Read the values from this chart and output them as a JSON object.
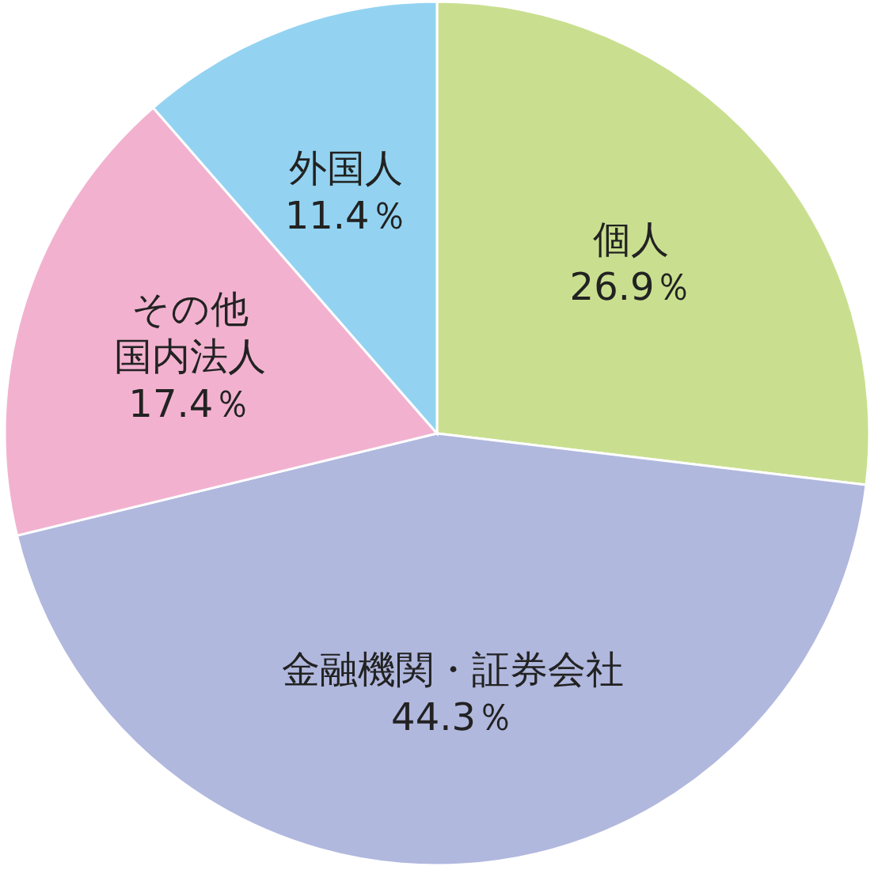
{
  "chart_data": {
    "type": "pie",
    "categories": [
      "個人",
      "金融機関・証券会社",
      "その他国内法人",
      "外国人"
    ],
    "values": [
      26.9,
      44.3,
      17.4,
      11.4
    ],
    "colors": [
      "#c9df8f",
      "#b1b8de",
      "#f2b2cf",
      "#93d3f1"
    ],
    "value_labels": [
      "26.9％",
      "44.3％",
      "17.4％",
      "11.4％"
    ]
  }
}
